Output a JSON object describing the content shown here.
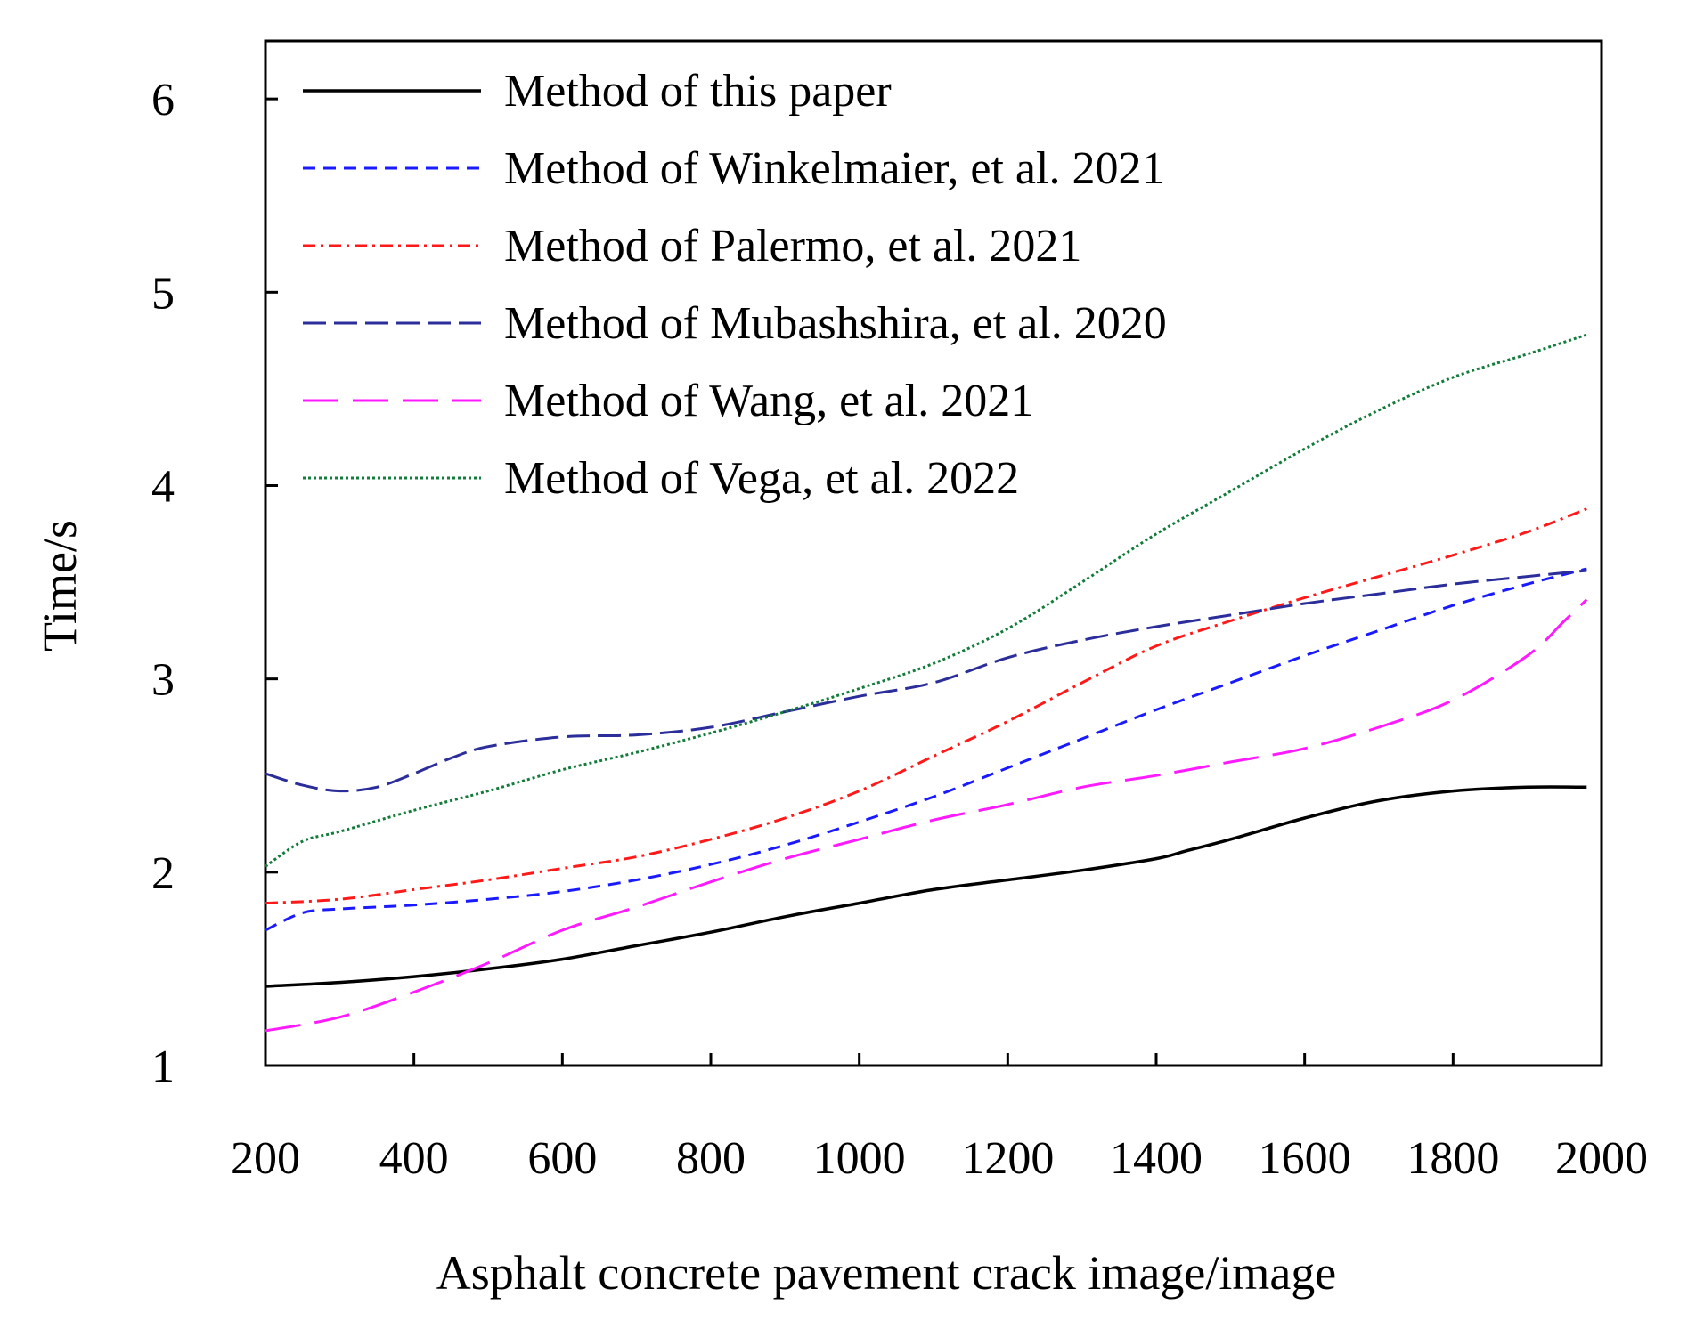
{
  "chart_data": {
    "type": "line",
    "title": "",
    "xlabel": "Asphalt concrete pavement crack image/image",
    "ylabel": "Time/s",
    "xlim": [
      200,
      2000
    ],
    "ylim": [
      1,
      6.3
    ],
    "x_ticks": [
      200,
      400,
      600,
      800,
      1000,
      1200,
      1400,
      1600,
      1800,
      2000
    ],
    "x_tick_labels": [
      "200",
      "400",
      "600",
      "800",
      "1000",
      "1200",
      "1400",
      "1600",
      "1800",
      "2000"
    ],
    "y_ticks": [
      1,
      2,
      3,
      4,
      5,
      6
    ],
    "y_tick_labels": [
      "1",
      "2",
      "3",
      "4",
      "5",
      "6"
    ],
    "grid": false,
    "legend_position": "top-left",
    "series": [
      {
        "name": "Method of this paper",
        "color": "#000000",
        "dash": "solid",
        "x": [
          200,
          300,
          400,
          500,
          600,
          700,
          800,
          900,
          1000,
          1100,
          1200,
          1300,
          1400,
          1440,
          1500,
          1600,
          1700,
          1800,
          1900,
          1980
        ],
        "y": [
          1.41,
          1.43,
          1.46,
          1.5,
          1.55,
          1.62,
          1.69,
          1.77,
          1.84,
          1.91,
          1.96,
          2.01,
          2.07,
          2.11,
          2.17,
          2.28,
          2.37,
          2.42,
          2.44,
          2.44
        ]
      },
      {
        "name": "Method of Winkelmaier, et al. 2021",
        "color": "#1a1aff",
        "dash": "dash",
        "x": [
          200,
          250,
          300,
          400,
          500,
          600,
          700,
          800,
          900,
          1000,
          1100,
          1200,
          1300,
          1400,
          1500,
          1600,
          1700,
          1800,
          1900,
          1980
        ],
        "y": [
          1.7,
          1.79,
          1.81,
          1.83,
          1.86,
          1.9,
          1.96,
          2.04,
          2.14,
          2.26,
          2.39,
          2.54,
          2.69,
          2.84,
          2.98,
          3.12,
          3.25,
          3.38,
          3.49,
          3.57
        ]
      },
      {
        "name": "Method of Palermo, et al. 2021",
        "color": "#ff1a1a",
        "dash": "dashdot",
        "x": [
          200,
          300,
          400,
          500,
          600,
          700,
          800,
          900,
          1000,
          1100,
          1200,
          1300,
          1400,
          1500,
          1600,
          1700,
          1800,
          1900,
          1980
        ],
        "y": [
          1.84,
          1.86,
          1.91,
          1.96,
          2.02,
          2.08,
          2.17,
          2.28,
          2.42,
          2.6,
          2.78,
          2.98,
          3.17,
          3.3,
          3.42,
          3.53,
          3.64,
          3.76,
          3.88
        ]
      },
      {
        "name": "Method of Mubashshira, et al. 2020",
        "color": "#2b2e9a",
        "dash": "longdash",
        "x": [
          200,
          250,
          300,
          350,
          400,
          450,
          500,
          600,
          700,
          800,
          900,
          1000,
          1100,
          1200,
          1300,
          1400,
          1500,
          1600,
          1700,
          1800,
          1900,
          1980
        ],
        "y": [
          2.51,
          2.45,
          2.42,
          2.44,
          2.51,
          2.59,
          2.65,
          2.7,
          2.71,
          2.75,
          2.83,
          2.91,
          2.98,
          3.11,
          3.2,
          3.27,
          3.33,
          3.39,
          3.44,
          3.49,
          3.53,
          3.56
        ]
      },
      {
        "name": "Method of Wang, et al. 2021",
        "color": "#ff1aff",
        "dash": "widedash",
        "x": [
          200,
          300,
          400,
          500,
          600,
          700,
          800,
          900,
          1000,
          1100,
          1200,
          1300,
          1400,
          1500,
          1600,
          1700,
          1800,
          1900,
          1950,
          1980
        ],
        "y": [
          1.18,
          1.25,
          1.38,
          1.53,
          1.7,
          1.82,
          1.95,
          2.07,
          2.17,
          2.27,
          2.35,
          2.44,
          2.5,
          2.57,
          2.64,
          2.75,
          2.89,
          3.12,
          3.3,
          3.41
        ]
      },
      {
        "name": "Method of Vega, et al. 2022",
        "color": "#137c3b",
        "dash": "dot",
        "x": [
          200,
          250,
          300,
          400,
          500,
          600,
          700,
          800,
          900,
          1000,
          1100,
          1200,
          1300,
          1400,
          1500,
          1600,
          1700,
          1800,
          1900,
          1980
        ],
        "y": [
          2.03,
          2.16,
          2.21,
          2.32,
          2.42,
          2.53,
          2.62,
          2.72,
          2.83,
          2.95,
          3.08,
          3.26,
          3.5,
          3.75,
          3.97,
          4.19,
          4.39,
          4.56,
          4.68,
          4.78
        ]
      }
    ]
  }
}
